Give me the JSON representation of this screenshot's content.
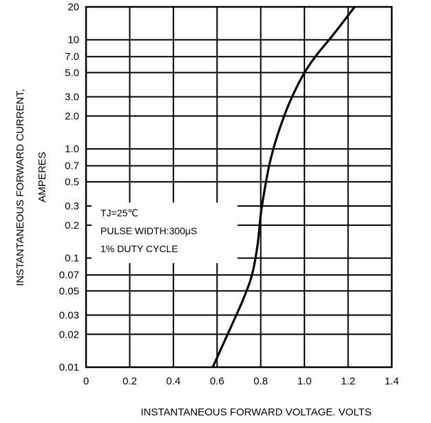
{
  "chart_data": {
    "type": "line",
    "title": "",
    "xlabel": "INSTANTANEOUS FORWARD VOLTAGE. VOLTS",
    "ylabel_lines": [
      "INSTANTANEOUS FORWARD CURRENT,",
      "AMPERES"
    ],
    "xlim": [
      0,
      1.4
    ],
    "ylim": [
      0.01,
      20
    ],
    "yscale": "log",
    "grid": true,
    "x_ticks": [
      {
        "value": 0,
        "label": "0"
      },
      {
        "value": 0.2,
        "label": "0.2"
      },
      {
        "value": 0.4,
        "label": "0.4"
      },
      {
        "value": 0.6,
        "label": "0.6"
      },
      {
        "value": 0.8,
        "label": "0.8"
      },
      {
        "value": 1.0,
        "label": "1.0"
      },
      {
        "value": 1.2,
        "label": "1.2"
      },
      {
        "value": 1.4,
        "label": "1.4"
      }
    ],
    "y_ticks": [
      {
        "value": 20,
        "label": "20"
      },
      {
        "value": 10,
        "label": "10"
      },
      {
        "value": 7,
        "label": "7.0"
      },
      {
        "value": 5,
        "label": "5.0"
      },
      {
        "value": 3,
        "label": "3.0"
      },
      {
        "value": 2,
        "label": "2.0"
      },
      {
        "value": 1,
        "label": "1.0"
      },
      {
        "value": 0.7,
        "label": "0.7"
      },
      {
        "value": 0.5,
        "label": "0.5"
      },
      {
        "value": 0.3,
        "label": "0.3"
      },
      {
        "value": 0.2,
        "label": "0.2"
      },
      {
        "value": 0.1,
        "label": "0.1"
      },
      {
        "value": 0.07,
        "label": "0.07"
      },
      {
        "value": 0.05,
        "label": "0.05"
      },
      {
        "value": 0.03,
        "label": "0.03"
      },
      {
        "value": 0.02,
        "label": "0.02"
      },
      {
        "value": 0.01,
        "label": "0.01"
      }
    ],
    "series": [
      {
        "x": [
          0.58,
          0.62,
          0.67,
          0.72,
          0.76,
          0.785,
          0.8,
          0.82,
          0.845,
          0.88,
          0.93,
          0.99,
          1.05,
          1.13,
          1.23
        ],
        "y": [
          0.01,
          0.015,
          0.025,
          0.042,
          0.07,
          0.13,
          0.25,
          0.45,
          0.8,
          1.4,
          2.6,
          4.6,
          7.0,
          11.0,
          20.0
        ]
      }
    ],
    "annotations": [
      "TJ=25℃",
      "PULSE WIDTH:300μS",
      "1% DUTY CYCLE"
    ]
  }
}
